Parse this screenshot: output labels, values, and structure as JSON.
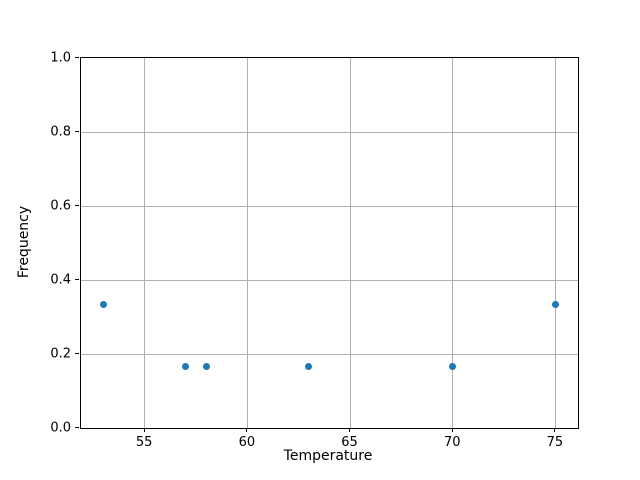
{
  "chart_data": {
    "type": "scatter",
    "title": "",
    "xlabel": "Temperature",
    "ylabel": "Frequency",
    "x": [
      53,
      57,
      58,
      63,
      70,
      75
    ],
    "y": [
      0.333,
      0.167,
      0.167,
      0.167,
      0.167,
      0.333
    ],
    "xlim": [
      51.9,
      76.1
    ],
    "ylim": [
      0.0,
      1.0
    ],
    "xticks": [
      55,
      60,
      65,
      70,
      75
    ],
    "xtick_labels": [
      "55",
      "60",
      "65",
      "70",
      "75"
    ],
    "yticks": [
      0.0,
      0.2,
      0.4,
      0.6,
      0.8,
      1.0
    ],
    "ytick_labels": [
      "0.0",
      "0.2",
      "0.4",
      "0.6",
      "0.8",
      "1.0"
    ],
    "grid": true,
    "legend": false,
    "marker_color": "#1f77b4",
    "grid_color": "#b0b0b0",
    "axis_color": "#000000"
  }
}
